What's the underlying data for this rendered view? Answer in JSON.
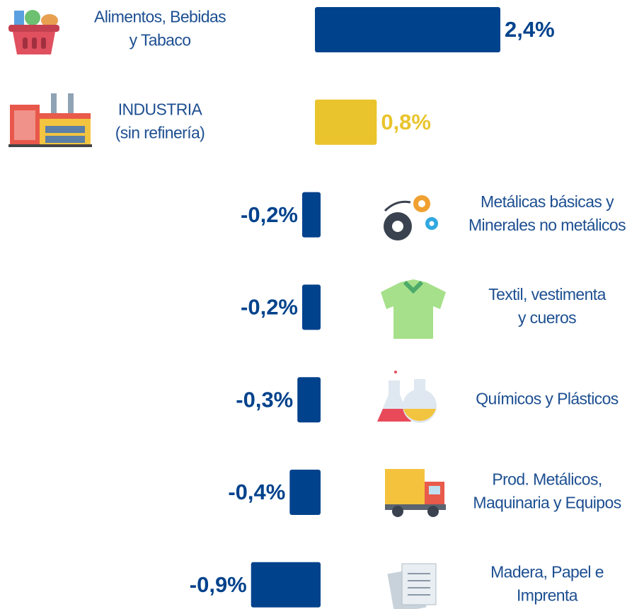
{
  "chart_data": {
    "type": "bar",
    "orientation": "horizontal",
    "categories": [
      [
        "Alimentos, Bebidas",
        "y Tabaco"
      ],
      [
        "INDUSTRIA",
        "(sin refinería)"
      ],
      [
        "Metálicas básicas y",
        "Minerales no metálicos"
      ],
      [
        "Textil, vestimenta",
        "y cueros"
      ],
      [
        "Químicos  y Plásticos"
      ],
      [
        "Prod. Metálicos,",
        "Maquinaria y Equipos"
      ],
      [
        "Madera, Papel e",
        "Imprenta"
      ]
    ],
    "values": [
      2.4,
      0.8,
      -0.2,
      -0.2,
      -0.3,
      -0.4,
      -0.9
    ],
    "value_labels": [
      "2,4%",
      "0,8%",
      "-0,2%",
      "-0,2%",
      "-0,3%",
      "-0,4%",
      "-0,9%"
    ],
    "colors": [
      "#00428c",
      "#e9c42c",
      "#00428c",
      "#00428c",
      "#00428c",
      "#00428c",
      "#00428c"
    ]
  }
}
